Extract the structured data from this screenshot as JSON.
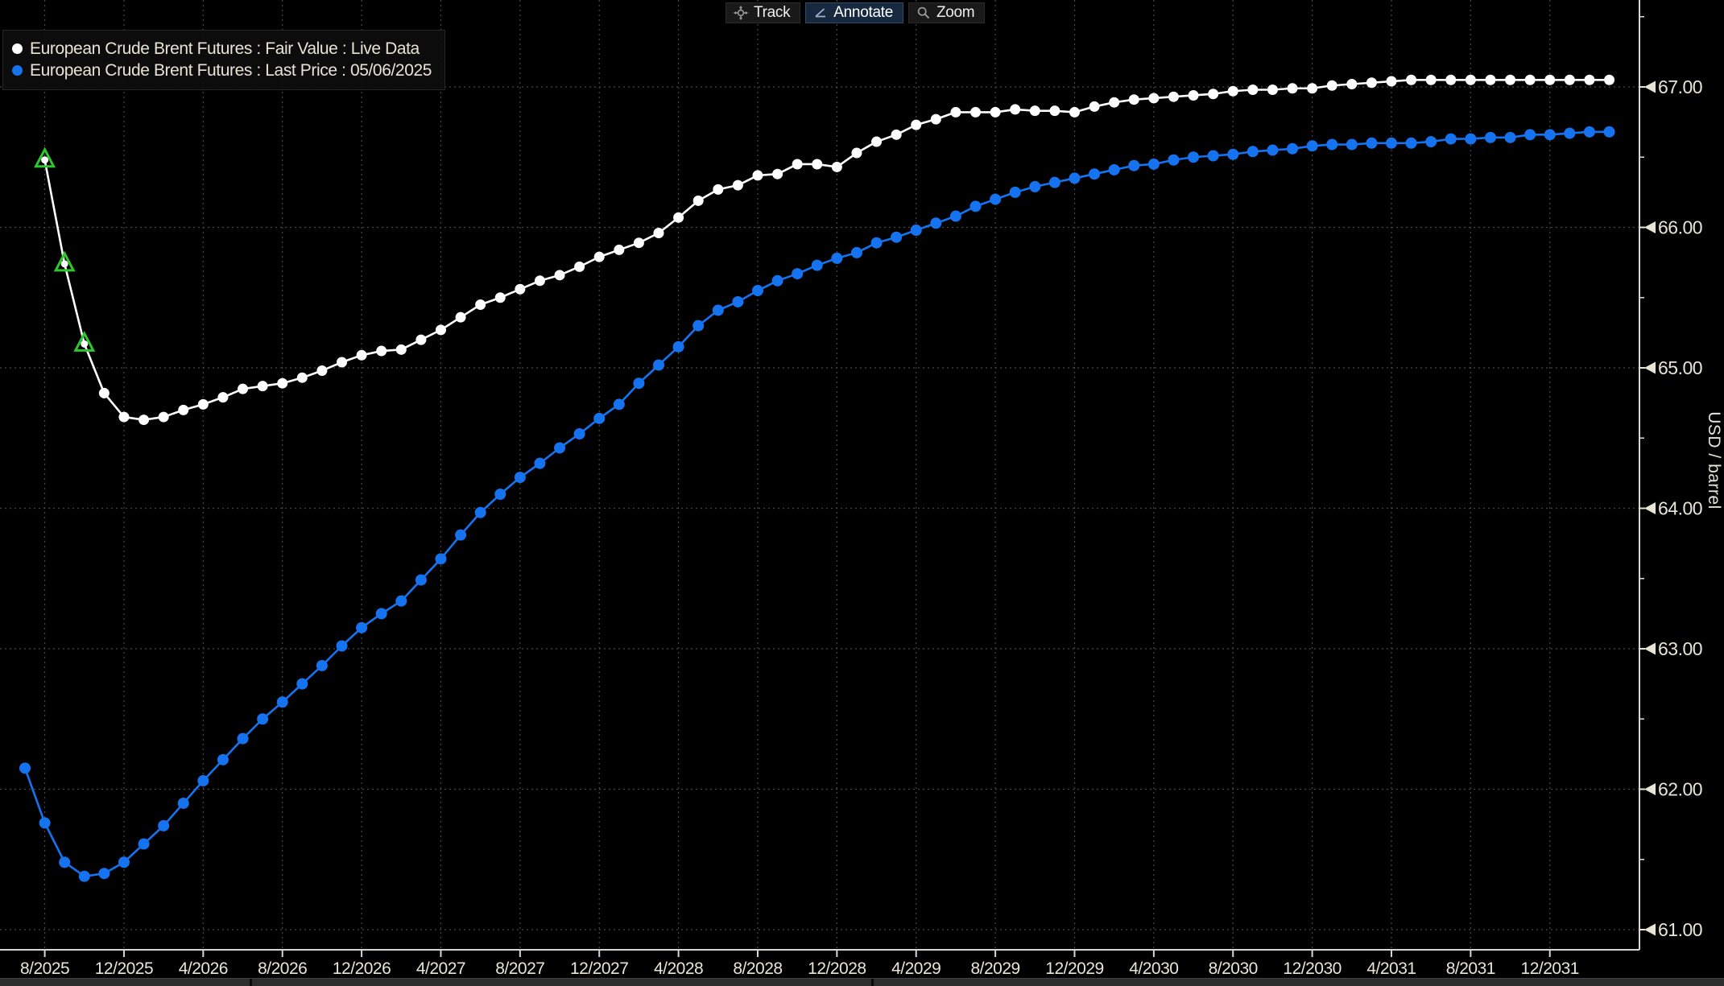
{
  "toolbar": {
    "track_label": "Track",
    "annotate_label": "Annotate",
    "zoom_label": "Zoom",
    "active_button": "Annotate"
  },
  "legend": {
    "series1_label": "European Crude Brent Futures : Fair Value : Live Data",
    "series2_label": "European Crude Brent Futures : Last Price : 05/06/2025"
  },
  "axis": {
    "y_title": "USD / barrel"
  },
  "colors": {
    "background": "#000000",
    "gridline": "#474747",
    "axis_line": "#d6d6d6",
    "tick_text": "#e8e4d6",
    "fair_value_series": "#ffffff",
    "last_price_series": "#1673f0",
    "expiry_marker_green": "#2dc82d",
    "toolbar_active_bg": "#16293f"
  },
  "chart_data": {
    "type": "line",
    "ylabel": "USD / barrel",
    "ylim": [
      60.86,
      67.62
    ],
    "grid": true,
    "legend_position": "top-left",
    "y_ticks": [
      67,
      66,
      65,
      64,
      63,
      62,
      61
    ],
    "y_minor_tick_step": 0.5,
    "months_per_tick": 4,
    "first_tick_month_index": 1,
    "start_month": "7/2025",
    "end_month": "3/2032",
    "x_tick_labels": [
      "8/2025",
      "12/2025",
      "4/2026",
      "8/2026",
      "12/2026",
      "4/2027",
      "8/2027",
      "12/2027",
      "4/2028",
      "8/2028",
      "12/2028",
      "4/2029",
      "8/2029",
      "12/2029",
      "4/2030",
      "8/2030",
      "12/2030",
      "4/2031",
      "8/2031",
      "12/2031"
    ],
    "series": [
      {
        "name": "European Crude Brent Futures : Fair Value : Live Data",
        "color": "#ffffff",
        "marker": "circle",
        "expiry_markers_first_n": 3,
        "start_month_index": 1,
        "values": [
          66.48,
          65.74,
          65.17,
          64.82,
          64.65,
          64.63,
          64.65,
          64.7,
          64.74,
          64.79,
          64.85,
          64.87,
          64.89,
          64.93,
          64.98,
          65.04,
          65.09,
          65.12,
          65.13,
          65.2,
          65.27,
          65.36,
          65.45,
          65.5,
          65.56,
          65.62,
          65.66,
          65.72,
          65.79,
          65.84,
          65.89,
          65.96,
          66.07,
          66.19,
          66.27,
          66.3,
          66.37,
          66.38,
          66.45,
          66.45,
          66.43,
          66.53,
          66.61,
          66.66,
          66.73,
          66.77,
          66.82,
          66.82,
          66.82,
          66.84,
          66.83,
          66.83,
          66.82,
          66.86,
          66.89,
          66.91,
          66.92,
          66.93,
          66.94,
          66.95,
          66.97,
          66.98,
          66.98,
          66.99,
          66.99,
          67.01,
          67.02,
          67.03,
          67.04,
          67.05,
          67.05,
          67.05,
          67.05,
          67.05,
          67.05,
          67.05,
          67.05,
          67.05,
          67.05,
          67.05
        ]
      },
      {
        "name": "European Crude Brent Futures : Last Price : 05/06/2025",
        "color": "#1673f0",
        "marker": "circle",
        "expiry_markers_first_n": 0,
        "start_month_index": 0,
        "values": [
          62.15,
          61.76,
          61.48,
          61.38,
          61.4,
          61.48,
          61.61,
          61.74,
          61.9,
          62.06,
          62.21,
          62.36,
          62.5,
          62.62,
          62.75,
          62.88,
          63.02,
          63.15,
          63.25,
          63.34,
          63.49,
          63.64,
          63.81,
          63.97,
          64.1,
          64.22,
          64.32,
          64.43,
          64.53,
          64.64,
          64.74,
          64.89,
          65.02,
          65.15,
          65.3,
          65.41,
          65.47,
          65.55,
          65.62,
          65.67,
          65.73,
          65.78,
          65.82,
          65.89,
          65.93,
          65.98,
          66.03,
          66.08,
          66.15,
          66.2,
          66.25,
          66.29,
          66.32,
          66.35,
          66.38,
          66.41,
          66.44,
          66.45,
          66.48,
          66.5,
          66.51,
          66.52,
          66.54,
          66.55,
          66.56,
          66.58,
          66.59,
          66.59,
          66.6,
          66.6,
          66.6,
          66.61,
          66.63,
          66.63,
          66.64,
          66.64,
          66.66,
          66.66,
          66.67,
          66.68,
          66.68
        ]
      }
    ]
  }
}
